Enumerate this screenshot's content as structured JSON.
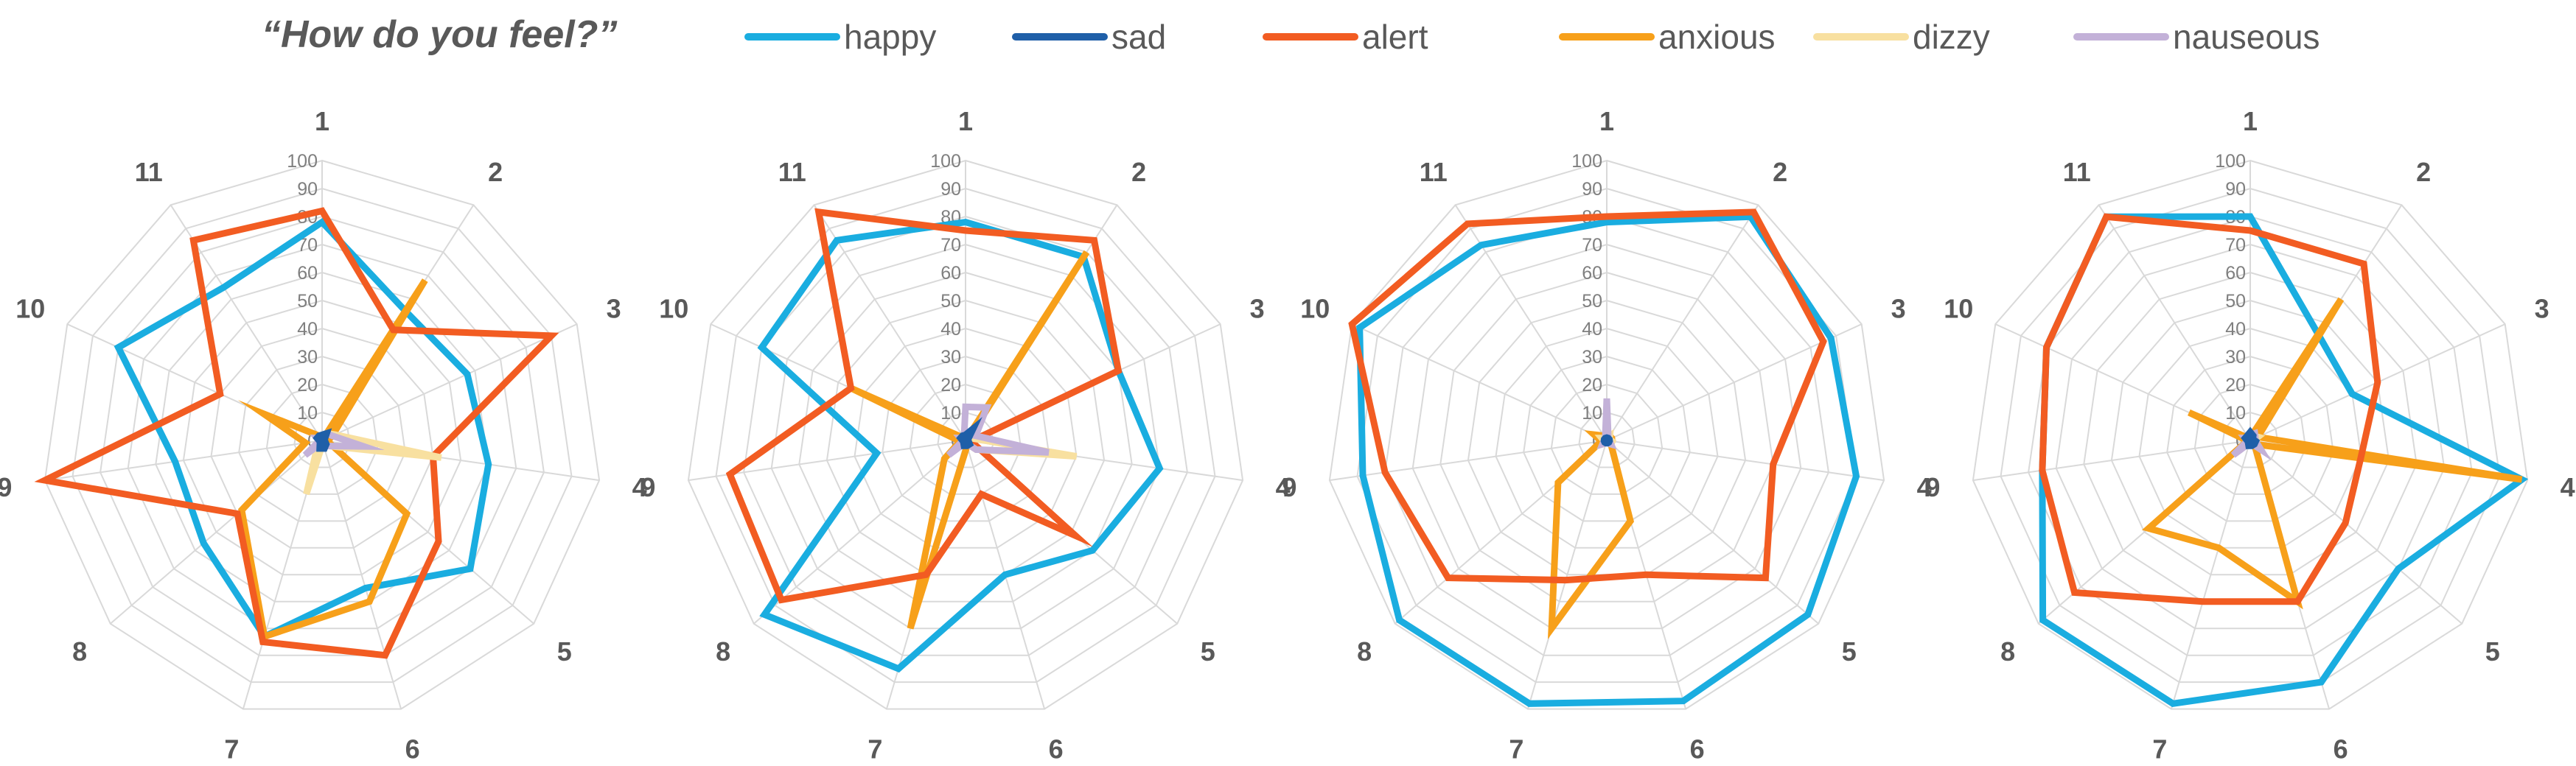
{
  "header": {
    "title": "“How do you feel?”"
  },
  "legend": [
    {
      "name": "happy",
      "color": "#1AADE0"
    },
    {
      "name": "sad",
      "color": "#1F5FA8"
    },
    {
      "name": "alert",
      "color": "#F25C22"
    },
    {
      "name": "anxious",
      "color": "#F7A01A"
    },
    {
      "name": "dizzy",
      "color": "#F8E0A0"
    },
    {
      "name": "nauseous",
      "color": "#C3B1D8"
    }
  ],
  "chart_data": [
    {
      "type": "radar",
      "axes": [
        "1",
        "2",
        "3",
        "4",
        "5",
        "6",
        "7",
        "8",
        "9",
        "10",
        "11"
      ],
      "rticks": [
        0,
        10,
        20,
        30,
        40,
        50,
        60,
        70,
        80,
        90,
        100
      ],
      "rlim": [
        0,
        100
      ],
      "series": [
        {
          "name": "happy",
          "values": [
            78,
            55,
            57,
            60,
            70,
            55,
            73,
            56,
            53,
            80,
            65
          ]
        },
        {
          "name": "sad",
          "values": [
            2,
            3,
            1,
            1,
            2,
            3,
            3,
            1,
            1,
            2,
            2
          ]
        },
        {
          "name": "alert",
          "values": [
            82,
            47,
            90,
            40,
            55,
            80,
            75,
            40,
            100,
            40,
            85
          ]
        },
        {
          "name": "anxious",
          "values": [
            0,
            68,
            4,
            2,
            40,
            60,
            73,
            38,
            6,
            23,
            2
          ]
        },
        {
          "name": "dizzy",
          "values": [
            2,
            3,
            5,
            43,
            3,
            1,
            20,
            2,
            1,
            2,
            1
          ]
        },
        {
          "name": "nauseous",
          "values": [
            2,
            3,
            4,
            15,
            3,
            1,
            1,
            8,
            1,
            2,
            1
          ]
        }
      ]
    },
    {
      "type": "radar",
      "axes": [
        "1",
        "2",
        "3",
        "4",
        "5",
        "6",
        "7",
        "8",
        "9",
        "10",
        "11"
      ],
      "rticks": [
        0,
        10,
        20,
        30,
        40,
        50,
        60,
        70,
        80,
        90,
        100
      ],
      "rlim": [
        0,
        100
      ],
      "series": [
        {
          "name": "happy",
          "values": [
            78,
            78,
            60,
            70,
            60,
            50,
            85,
            95,
            32,
            80,
            85
          ]
        },
        {
          "name": "sad",
          "values": [
            2,
            5,
            1,
            1,
            2,
            2,
            2,
            1,
            1,
            2,
            2
          ]
        },
        {
          "name": "alert",
          "values": [
            75,
            85,
            60,
            2,
            52,
            20,
            50,
            87,
            85,
            45,
            97
          ]
        },
        {
          "name": "anxious",
          "values": [
            0,
            80,
            1,
            2,
            1,
            2,
            70,
            10,
            2,
            45,
            1
          ]
        },
        {
          "name": "dizzy",
          "values": [
            2,
            3,
            2,
            40,
            5,
            1,
            1,
            1,
            1,
            2,
            1
          ]
        },
        {
          "name": "nauseous",
          "values": [
            12,
            14,
            4,
            30,
            5,
            1,
            1,
            8,
            1,
            2,
            1
          ]
        }
      ]
    },
    {
      "type": "radar",
      "axes": [
        "1",
        "2",
        "3",
        "4",
        "5",
        "6",
        "7",
        "8",
        "9",
        "10",
        "11"
      ],
      "rticks": [
        0,
        10,
        20,
        30,
        40,
        50,
        60,
        70,
        80,
        90,
        100
      ],
      "rlim": [
        0,
        100
      ],
      "series": [
        {
          "name": "happy",
          "values": [
            78,
            95,
            88,
            90,
            95,
            97,
            98,
            98,
            88,
            97,
            83
          ]
        },
        {
          "name": "sad",
          "values": [
            1,
            1,
            1,
            1,
            1,
            1,
            1,
            1,
            1,
            1,
            1
          ]
        },
        {
          "name": "alert",
          "values": [
            80,
            97,
            85,
            60,
            75,
            50,
            52,
            75,
            80,
            100,
            92
          ]
        },
        {
          "name": "anxious",
          "values": [
            1,
            2,
            2,
            2,
            2,
            30,
            70,
            23,
            2,
            5,
            2
          ]
        },
        {
          "name": "dizzy",
          "values": [
            1,
            2,
            1,
            2,
            2,
            1,
            1,
            2,
            1,
            2,
            1
          ]
        },
        {
          "name": "nauseous",
          "values": [
            15,
            1,
            1,
            1,
            2,
            1,
            1,
            2,
            1,
            1,
            1
          ]
        }
      ]
    },
    {
      "type": "radar",
      "axes": [
        "1",
        "2",
        "3",
        "4",
        "5",
        "6",
        "7",
        "8",
        "9",
        "10",
        "11"
      ],
      "rticks": [
        0,
        10,
        20,
        30,
        40,
        50,
        60,
        70,
        80,
        90,
        100
      ],
      "rlim": [
        0,
        100
      ],
      "series": [
        {
          "name": "happy",
          "values": [
            80,
            45,
            40,
            98,
            70,
            90,
            98,
            98,
            75,
            80,
            95
          ]
        },
        {
          "name": "sad",
          "values": [
            3,
            2,
            1,
            2,
            2,
            2,
            2,
            1,
            1,
            2,
            2
          ]
        },
        {
          "name": "alert",
          "values": [
            75,
            75,
            50,
            40,
            45,
            60,
            60,
            83,
            75,
            80,
            95
          ]
        },
        {
          "name": "anxious",
          "values": [
            1,
            60,
            3,
            98,
            2,
            60,
            40,
            48,
            1,
            24,
            1
          ]
        },
        {
          "name": "dizzy",
          "values": [
            1,
            2,
            3,
            1,
            3,
            1,
            1,
            2,
            1,
            2,
            1
          ]
        },
        {
          "name": "nauseous",
          "values": [
            2,
            3,
            2,
            2,
            5,
            1,
            1,
            8,
            1,
            2,
            1
          ]
        }
      ]
    }
  ]
}
